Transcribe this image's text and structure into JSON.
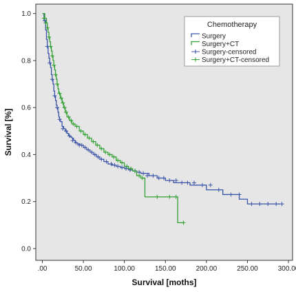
{
  "chart_data": {
    "type": "line",
    "title": "",
    "xlabel": "Survival [moths]",
    "ylabel": "Survival [%]",
    "xlim": [
      -8,
      305
    ],
    "ylim": [
      -0.05,
      1.04
    ],
    "x_ticks": [
      0,
      50,
      100,
      150,
      200,
      250,
      300
    ],
    "x_tick_labels": [
      ".00",
      "50.00",
      "100.00",
      "150.00",
      "200.00",
      "250.00",
      "300.00"
    ],
    "y_ticks": [
      0,
      0.2,
      0.4,
      0.6,
      0.8,
      1.0
    ],
    "y_tick_labels": [
      "0.0",
      "0.2",
      "0.4",
      "0.6",
      "0.8",
      "1.0"
    ],
    "grid": false,
    "legend": {
      "title": "Chemotherapy",
      "placement": "top-right",
      "entries": [
        "Surgery",
        "Surgery+CT",
        "Surgery-censored",
        "Surgery+CT-censored"
      ]
    },
    "series": [
      {
        "name": "Surgery",
        "style": "step",
        "color": "#3a54a8",
        "x": [
          0,
          2,
          4,
          5,
          6,
          7,
          8,
          9,
          10,
          11,
          12,
          13,
          14,
          15,
          16,
          17,
          18,
          19,
          20,
          21,
          22,
          24,
          26,
          28,
          30,
          32,
          34,
          36,
          38,
          40,
          43,
          46,
          50,
          54,
          58,
          62,
          66,
          70,
          75,
          80,
          85,
          90,
          95,
          100,
          105,
          110,
          115,
          120,
          130,
          140,
          150,
          160,
          180,
          200,
          220,
          240,
          250,
          290
        ],
        "y": [
          1.0,
          0.97,
          0.93,
          0.89,
          0.86,
          0.83,
          0.81,
          0.79,
          0.77,
          0.74,
          0.72,
          0.7,
          0.67,
          0.65,
          0.63,
          0.61,
          0.6,
          0.58,
          0.56,
          0.55,
          0.54,
          0.52,
          0.51,
          0.5,
          0.49,
          0.48,
          0.475,
          0.47,
          0.46,
          0.45,
          0.445,
          0.44,
          0.43,
          0.42,
          0.41,
          0.4,
          0.39,
          0.38,
          0.37,
          0.36,
          0.355,
          0.35,
          0.345,
          0.34,
          0.335,
          0.33,
          0.325,
          0.32,
          0.31,
          0.3,
          0.29,
          0.28,
          0.27,
          0.25,
          0.23,
          0.21,
          0.19,
          0.19
        ]
      },
      {
        "name": "Surgery+CT",
        "style": "step",
        "color": "#33a033",
        "x": [
          0,
          3,
          5,
          6,
          7,
          8,
          9,
          10,
          11,
          12,
          13,
          14,
          15,
          16,
          17,
          18,
          19,
          20,
          22,
          24,
          26,
          28,
          30,
          33,
          36,
          40,
          45,
          50,
          55,
          60,
          65,
          70,
          75,
          80,
          85,
          90,
          95,
          100,
          105,
          110,
          115,
          120,
          125,
          145,
          160,
          165,
          172
        ],
        "y": [
          1.0,
          0.98,
          0.96,
          0.94,
          0.92,
          0.9,
          0.88,
          0.86,
          0.84,
          0.82,
          0.8,
          0.78,
          0.76,
          0.74,
          0.72,
          0.7,
          0.68,
          0.66,
          0.64,
          0.62,
          0.6,
          0.58,
          0.56,
          0.545,
          0.53,
          0.52,
          0.5,
          0.485,
          0.47,
          0.455,
          0.44,
          0.425,
          0.41,
          0.4,
          0.39,
          0.375,
          0.365,
          0.35,
          0.34,
          0.33,
          0.31,
          0.3,
          0.22,
          0.22,
          0.22,
          0.11,
          0.11
        ]
      }
    ],
    "censored": [
      {
        "name": "Surgery-censored",
        "color": "#3a54a8",
        "x": [
          3,
          6,
          9,
          12,
          15,
          18,
          21,
          25,
          29,
          33,
          37,
          41,
          45,
          48,
          52,
          56,
          60,
          64,
          68,
          72,
          78,
          84,
          88,
          92,
          97,
          102,
          107,
          113,
          118,
          123,
          128,
          135,
          142,
          148,
          155,
          163,
          170,
          177,
          185,
          195,
          205,
          215,
          230,
          240,
          255,
          265,
          275,
          285,
          292
        ],
        "y": [
          0.97,
          0.86,
          0.79,
          0.72,
          0.65,
          0.6,
          0.55,
          0.51,
          0.5,
          0.48,
          0.46,
          0.45,
          0.44,
          0.44,
          0.43,
          0.42,
          0.41,
          0.4,
          0.39,
          0.38,
          0.37,
          0.36,
          0.355,
          0.35,
          0.345,
          0.34,
          0.335,
          0.33,
          0.325,
          0.32,
          0.31,
          0.31,
          0.3,
          0.3,
          0.29,
          0.29,
          0.28,
          0.28,
          0.28,
          0.27,
          0.27,
          0.25,
          0.23,
          0.23,
          0.19,
          0.19,
          0.19,
          0.19,
          0.19
        ]
      },
      {
        "name": "Surgery+CT-censored",
        "color": "#33a033",
        "x": [
          2,
          4,
          6,
          8,
          10,
          12,
          14,
          16,
          18,
          21,
          23,
          25,
          27,
          29,
          32,
          35,
          38,
          42,
          47,
          52,
          57,
          62,
          67,
          72,
          77,
          82,
          87,
          92,
          97,
          103,
          108,
          113,
          118,
          122,
          140,
          155,
          163,
          172
        ],
        "y": [
          0.98,
          0.96,
          0.94,
          0.9,
          0.86,
          0.82,
          0.78,
          0.74,
          0.7,
          0.66,
          0.64,
          0.62,
          0.6,
          0.58,
          0.56,
          0.545,
          0.53,
          0.52,
          0.5,
          0.485,
          0.47,
          0.455,
          0.44,
          0.425,
          0.41,
          0.4,
          0.39,
          0.375,
          0.365,
          0.35,
          0.34,
          0.33,
          0.31,
          0.3,
          0.22,
          0.22,
          0.22,
          0.11
        ]
      }
    ]
  }
}
